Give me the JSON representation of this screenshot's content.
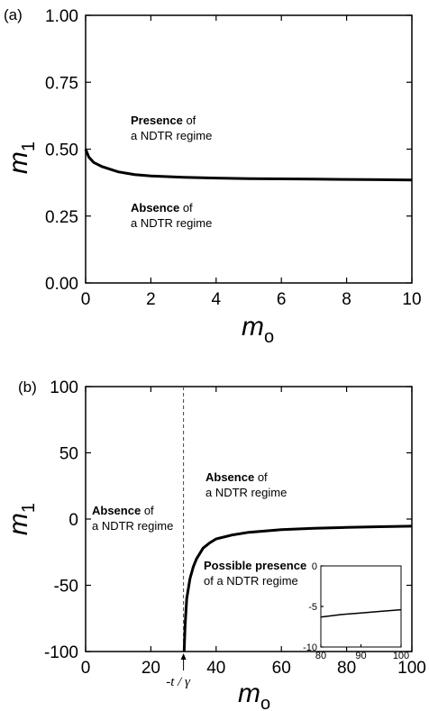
{
  "chart_data": [
    {
      "panel_label": "(a)",
      "type": "line",
      "xlabel": {
        "main": "m",
        "sub": "o"
      },
      "ylabel": {
        "main": "m",
        "sub": "1"
      },
      "xlim": [
        0,
        10
      ],
      "ylim": [
        0,
        1
      ],
      "xticks": [
        0,
        2,
        4,
        6,
        8,
        10
      ],
      "xtick_labels": [
        "0",
        "2",
        "4",
        "6",
        "8",
        "10"
      ],
      "yticks": [
        0,
        0.25,
        0.5,
        0.75,
        1.0
      ],
      "ytick_labels": [
        "0.00",
        "0.25",
        "0.50",
        "0.75",
        "1.00"
      ],
      "series": [
        {
          "x": [
            0,
            0.1,
            0.25,
            0.5,
            1,
            1.5,
            2,
            3,
            4,
            5,
            6,
            7,
            8,
            9,
            10
          ],
          "y": [
            0.5,
            0.47,
            0.45,
            0.435,
            0.415,
            0.405,
            0.4,
            0.395,
            0.392,
            0.39,
            0.389,
            0.388,
            0.387,
            0.386,
            0.385
          ]
        }
      ],
      "annotations": [
        {
          "bold": "Presence",
          "rest": " of",
          "line2": "a NDTR regime"
        },
        {
          "bold": "Absence",
          "rest": " of",
          "line2": "a NDTR regime"
        }
      ]
    },
    {
      "panel_label": "(b)",
      "type": "line",
      "xlabel": {
        "main": "m",
        "sub": "o"
      },
      "ylabel": {
        "main": "m",
        "sub": "1"
      },
      "xlim": [
        0,
        100
      ],
      "ylim": [
        -100,
        100
      ],
      "xticks": [
        0,
        20,
        40,
        60,
        80,
        100
      ],
      "xtick_labels": [
        "0",
        "20",
        "40",
        "60",
        "80",
        "100"
      ],
      "yticks": [
        -100,
        -50,
        0,
        50,
        100
      ],
      "ytick_labels": [
        "-100",
        "-50",
        "0",
        "50",
        "100"
      ],
      "asymptote_x": 30,
      "asymptote_label": "-t / γ",
      "series": [
        {
          "x": [
            30.2,
            30.5,
            31,
            32,
            33,
            34,
            35,
            36,
            38,
            40,
            45,
            50,
            55,
            60,
            70,
            80,
            90,
            100
          ],
          "y": [
            -100,
            -80,
            -60,
            -45,
            -36,
            -30,
            -26,
            -22,
            -18,
            -15,
            -12,
            -10,
            -9,
            -8,
            -7,
            -6.3,
            -5.8,
            -5.4
          ]
        }
      ],
      "annotations": [
        {
          "bold": "Absence",
          "rest": " of",
          "line2": "a NDTR regime"
        },
        {
          "bold": "Absence",
          "rest": " of",
          "line2": "a NDTR regime"
        },
        {
          "bold": "Possible presence",
          "rest": "",
          "line2": "of a NDTR regime"
        }
      ],
      "inset": {
        "xlim": [
          80,
          100
        ],
        "ylim": [
          -10,
          0
        ],
        "xticks": [
          80,
          90,
          100
        ],
        "xtick_labels": [
          "80",
          "90",
          "100"
        ],
        "yticks": [
          -10,
          -5,
          0
        ],
        "ytick_labels": [
          "-10",
          "-5",
          "0"
        ],
        "series": [
          {
            "x": [
              80,
              85,
              90,
              95,
              100
            ],
            "y": [
              -6.3,
              -6.0,
              -5.8,
              -5.6,
              -5.4
            ]
          }
        ]
      }
    }
  ]
}
